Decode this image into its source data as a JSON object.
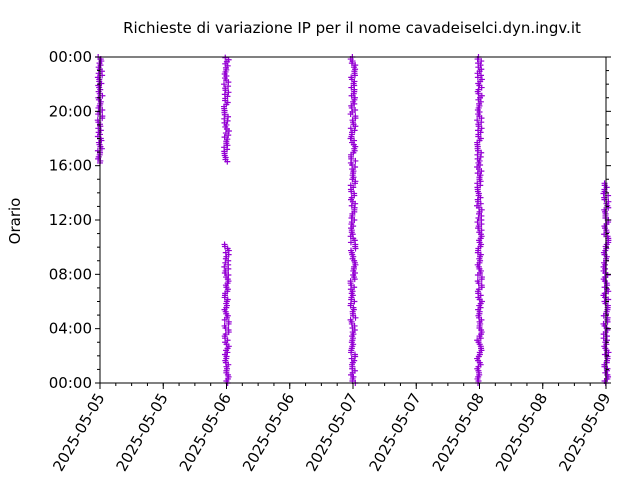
{
  "chart_data": {
    "type": "scatter",
    "title": "Richieste di variazione IP per il nome cavadeiselci.dyn.ingv.it",
    "xlabel": "",
    "ylabel": "Orario",
    "marker": "plus",
    "color": "#9400d3",
    "grid": false,
    "legend": "none",
    "x_tick_labels": [
      "2025-05-05",
      "2025-05-05",
      "2025-05-06",
      "2025-05-06",
      "2025-05-07",
      "2025-05-07",
      "2025-05-08",
      "2025-05-08",
      "2025-05-09"
    ],
    "x_tick_values": [
      "2025-05-05 00:00",
      "2025-05-05 12:00",
      "2025-05-06 00:00",
      "2025-05-06 12:00",
      "2025-05-07 00:00",
      "2025-05-07 12:00",
      "2025-05-08 00:00",
      "2025-05-08 12:00",
      "2025-05-09 00:00"
    ],
    "xlim": [
      "2025-05-05 00:00",
      "2025-05-09 00:00"
    ],
    "y_tick_labels": [
      "00:00",
      "04:00",
      "08:00",
      "12:00",
      "16:00",
      "20:00",
      "00:00"
    ],
    "y_tick_values_hours": [
      0,
      4,
      8,
      12,
      16,
      20,
      24
    ],
    "ylim_hours": [
      0,
      24
    ],
    "clusters": [
      {
        "date": "2025-05-05",
        "time_ranges_hours": [
          [
            16.2,
            24.0
          ]
        ]
      },
      {
        "date": "2025-05-06",
        "time_ranges_hours": [
          [
            0.0,
            10.2
          ],
          [
            16.3,
            24.0
          ]
        ]
      },
      {
        "date": "2025-05-07",
        "time_ranges_hours": [
          [
            0.0,
            24.0
          ]
        ]
      },
      {
        "date": "2025-05-08",
        "time_ranges_hours": [
          [
            0.0,
            24.0
          ]
        ]
      },
      {
        "date": "2025-05-09",
        "time_ranges_hours": [
          [
            0.0,
            14.8
          ]
        ]
      }
    ]
  }
}
